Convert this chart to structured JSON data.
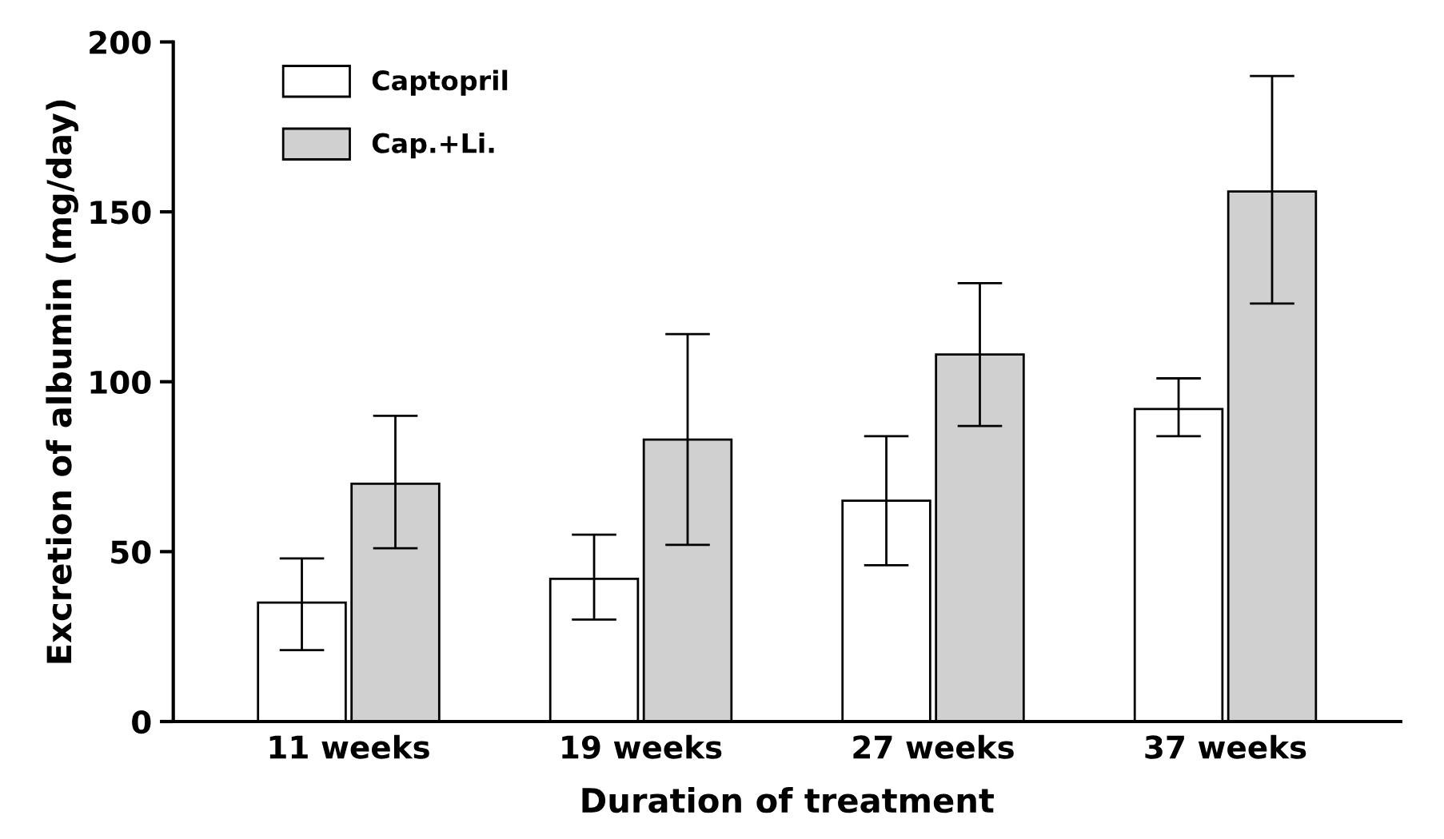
{
  "chart_data": {
    "type": "bar",
    "xlabel": "Duration of treatment",
    "ylabel": "Excretion of albumin (mg/day)",
    "categories": [
      "11 weeks",
      "19 weeks",
      "27 weeks",
      "37 weeks"
    ],
    "series": [
      {
        "name": "Captopril",
        "color": "#ffffff",
        "values": [
          35,
          42,
          65,
          92
        ],
        "errors": [
          [
            21,
            48
          ],
          [
            30,
            55
          ],
          [
            46,
            84
          ],
          [
            84,
            101
          ]
        ]
      },
      {
        "name": "Cap.+Li.",
        "color": "#d0d0d0",
        "values": [
          70,
          83,
          108,
          156
        ],
        "errors": [
          [
            51,
            90
          ],
          [
            52,
            114
          ],
          [
            87,
            129
          ],
          [
            123,
            190
          ]
        ]
      }
    ],
    "ylim": [
      0,
      200
    ],
    "yticks": [
      0,
      50,
      100,
      150,
      200
    ],
    "grid": false,
    "legend": "top left"
  }
}
